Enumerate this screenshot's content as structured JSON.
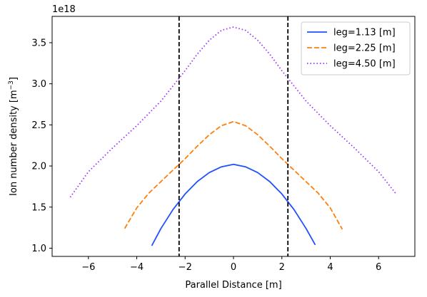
{
  "chart_data": {
    "type": "line",
    "xlabel": "Parallel Distance [m]",
    "ylabel_main": "Ion number density [m",
    "ylabel_sup": "−3",
    "ylabel_close": "]",
    "y_offset_text": "1e18",
    "xlim": [
      -7.5,
      7.5
    ],
    "ylim": [
      0.9,
      3.82
    ],
    "x_ticks": [
      {
        "value": -6,
        "label": "−6"
      },
      {
        "value": -4,
        "label": "−4"
      },
      {
        "value": -2,
        "label": "−2"
      },
      {
        "value": 0,
        "label": "0"
      },
      {
        "value": 2,
        "label": "2"
      },
      {
        "value": 4,
        "label": "4"
      },
      {
        "value": 6,
        "label": "6"
      }
    ],
    "y_ticks": [
      {
        "value": 1.0,
        "label": "1.0"
      },
      {
        "value": 1.5,
        "label": "1.5"
      },
      {
        "value": 2.0,
        "label": "2.0"
      },
      {
        "value": 2.5,
        "label": "2.5"
      },
      {
        "value": 3.0,
        "label": "3.0"
      },
      {
        "value": 3.5,
        "label": "3.5"
      }
    ],
    "vlines": [
      -2.25,
      2.25
    ],
    "vline_color": "#000000",
    "legend_position": "upper-right",
    "series": [
      {
        "name": "leg=1.13 [m]",
        "color": "#1f4fff",
        "style": "solid",
        "x": [
          -3.38,
          -3.0,
          -2.5,
          -2.0,
          -1.5,
          -1.0,
          -0.5,
          0.0,
          0.5,
          1.0,
          1.5,
          2.0,
          2.5,
          3.0,
          3.38
        ],
        "y": [
          1.03,
          1.24,
          1.47,
          1.66,
          1.81,
          1.92,
          1.99,
          2.02,
          1.99,
          1.92,
          1.81,
          1.66,
          1.47,
          1.24,
          1.04
        ]
      },
      {
        "name": "leg=2.25 [m]",
        "color": "#ff7f0e",
        "style": "dashed",
        "x": [
          -4.5,
          -4.0,
          -3.5,
          -3.0,
          -2.5,
          -2.0,
          -1.5,
          -1.0,
          -0.5,
          0.0,
          0.5,
          1.0,
          1.5,
          2.0,
          2.5,
          3.0,
          3.5,
          4.0,
          4.5
        ],
        "y": [
          1.24,
          1.49,
          1.67,
          1.81,
          1.95,
          2.09,
          2.24,
          2.38,
          2.49,
          2.54,
          2.49,
          2.38,
          2.24,
          2.09,
          1.95,
          1.81,
          1.67,
          1.49,
          1.23
        ]
      },
      {
        "name": "leg=4.50 [m]",
        "color": "#9b30ff",
        "style": "dotted",
        "x": [
          -6.75,
          -6.0,
          -5.0,
          -4.0,
          -3.0,
          -2.0,
          -1.5,
          -1.0,
          -0.5,
          0.0,
          0.5,
          1.0,
          1.5,
          2.0,
          3.0,
          4.0,
          5.0,
          6.0,
          6.75
        ],
        "y": [
          1.62,
          1.93,
          2.22,
          2.49,
          2.79,
          3.16,
          3.36,
          3.53,
          3.65,
          3.69,
          3.65,
          3.53,
          3.36,
          3.16,
          2.79,
          2.49,
          2.22,
          1.93,
          1.65
        ]
      }
    ]
  }
}
